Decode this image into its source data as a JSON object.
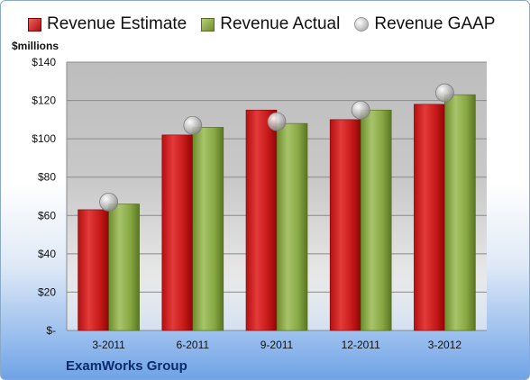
{
  "chart_data": {
    "type": "bar",
    "categories": [
      "3-2011",
      "6-2011",
      "9-2011",
      "12-2011",
      "3-2012"
    ],
    "series": [
      {
        "name": "Revenue Estimate",
        "kind": "bar",
        "color": "#d21c1c",
        "values": [
          63,
          102,
          115,
          110,
          118
        ]
      },
      {
        "name": "Revenue Actual",
        "kind": "bar",
        "color": "#8fae4a",
        "values": [
          66,
          106,
          108,
          115,
          123
        ]
      },
      {
        "name": "Revenue GAAP",
        "kind": "marker",
        "color": "#c0c0c0",
        "values": [
          67,
          107,
          109,
          115,
          124
        ]
      }
    ],
    "ylabel": "$millions",
    "ylim": [
      0,
      140
    ],
    "yticks": [
      0,
      20,
      40,
      60,
      80,
      100,
      120,
      140
    ],
    "ytick_labels": [
      "$-",
      "$20",
      "$40",
      "$60",
      "$80",
      "$100",
      "$120",
      "$140"
    ],
    "grid": true,
    "legend": "top"
  },
  "footer": {
    "company": "ExamWorks Group"
  }
}
